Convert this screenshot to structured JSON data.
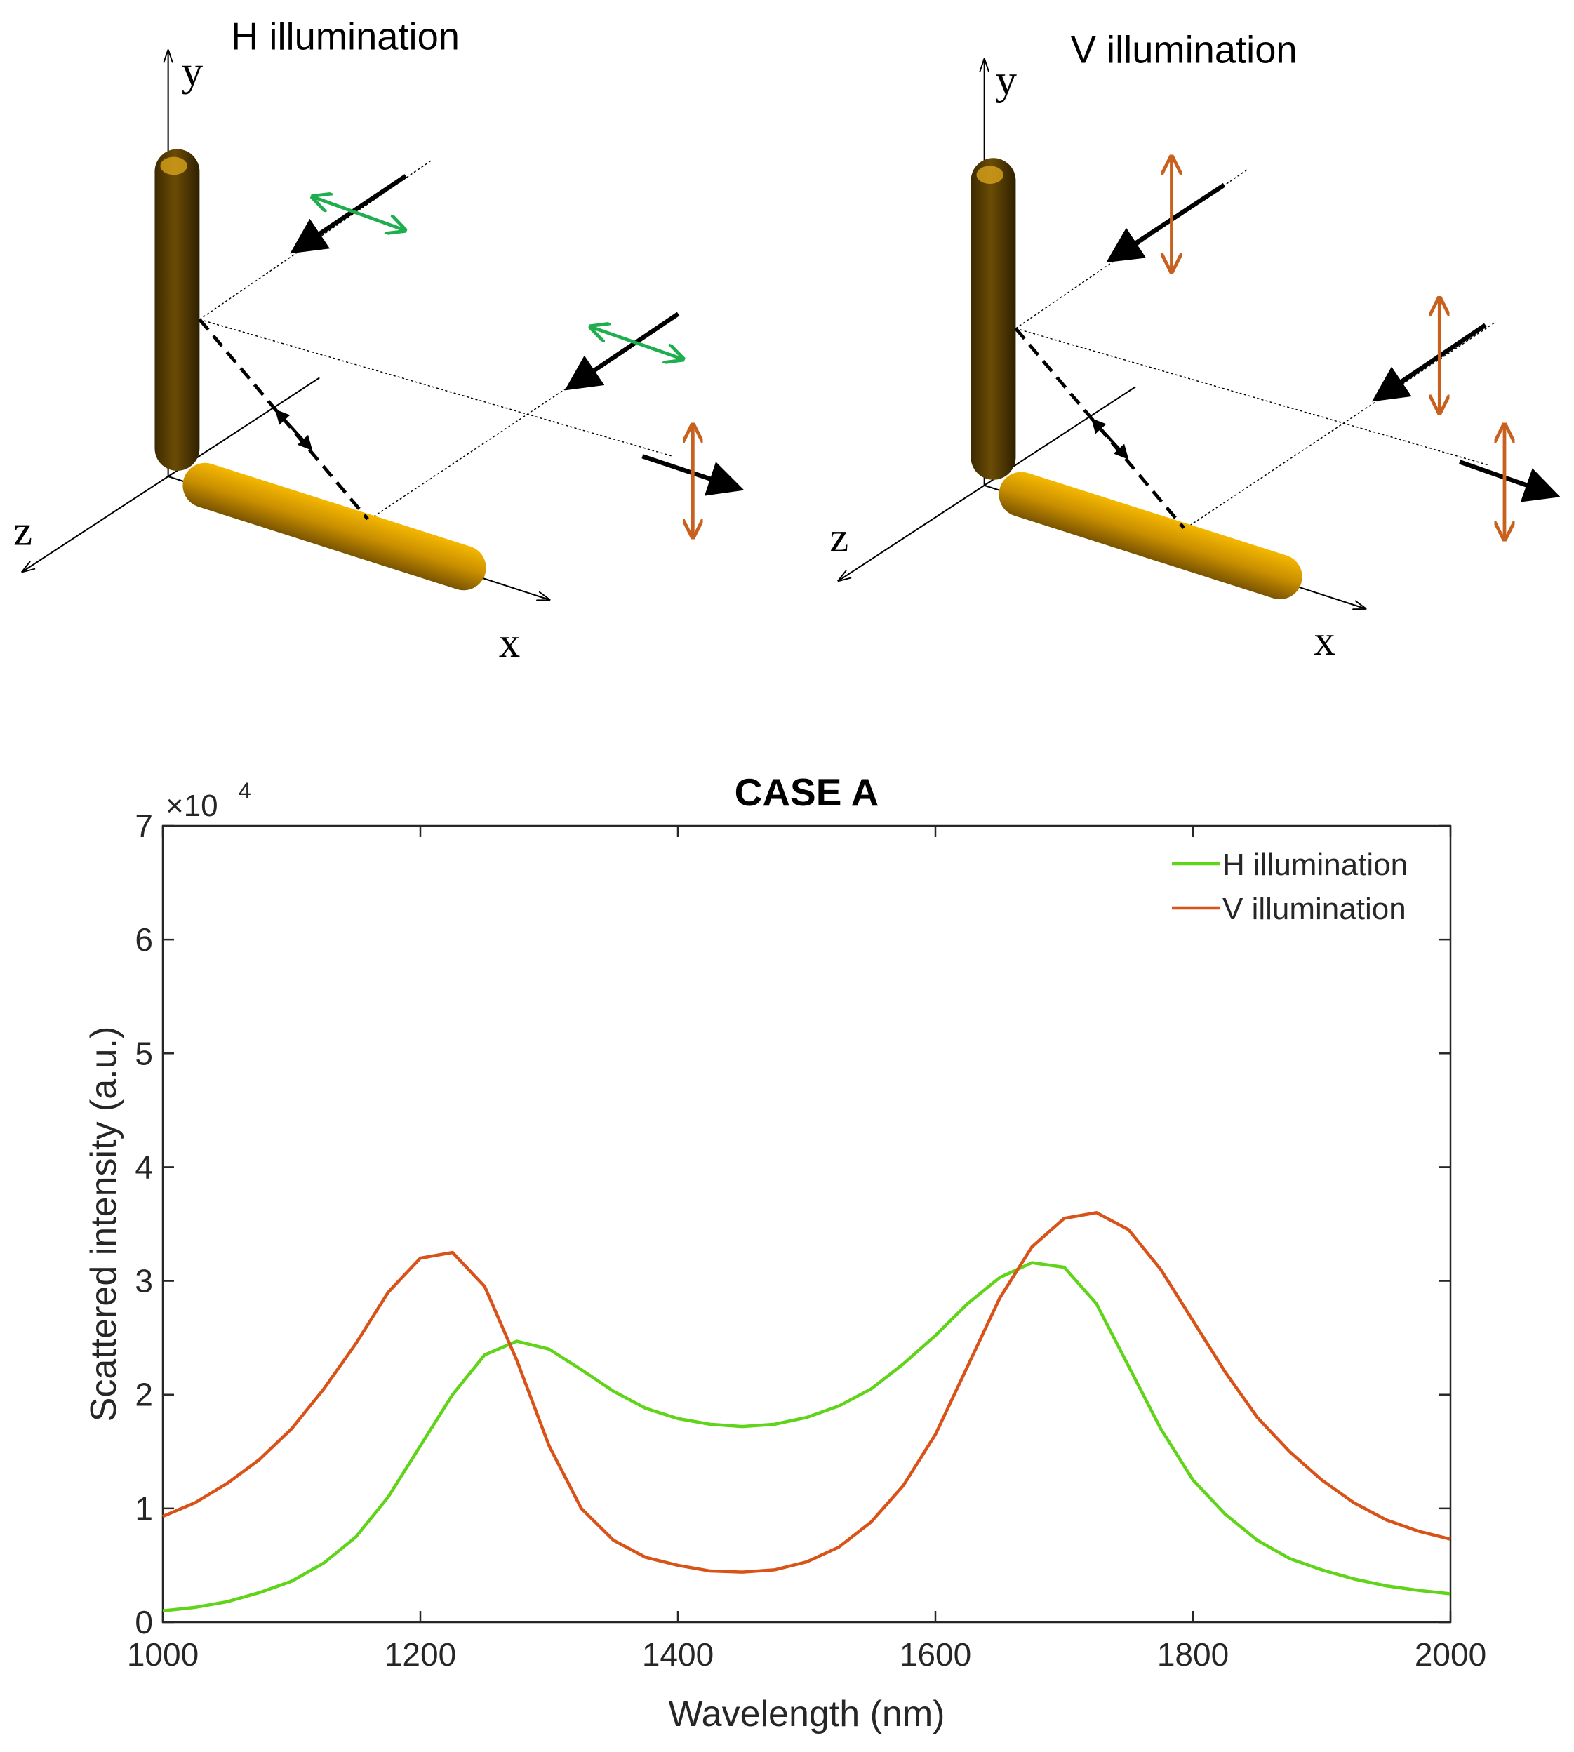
{
  "diagrams": [
    {
      "title": "H illumination",
      "axis_labels": {
        "x": "x",
        "y": "y",
        "z": "z"
      }
    },
    {
      "title": "V illumination",
      "axis_labels": {
        "x": "x",
        "y": "y",
        "z": "z"
      }
    }
  ],
  "chart_data": {
    "type": "line",
    "title": "CASE A",
    "xlabel": "Wavelength (nm)",
    "ylabel": "Scattered intensity (a.u.)",
    "y_multiplier": {
      "base": "×10",
      "exponent": "4"
    },
    "x": [
      1000,
      1025,
      1050,
      1075,
      1100,
      1125,
      1150,
      1175,
      1200,
      1225,
      1250,
      1275,
      1300,
      1325,
      1350,
      1375,
      1400,
      1425,
      1450,
      1475,
      1500,
      1525,
      1550,
      1575,
      1600,
      1625,
      1650,
      1675,
      1700,
      1725,
      1750,
      1775,
      1800,
      1825,
      1850,
      1875,
      1900,
      1925,
      1950,
      1975,
      2000
    ],
    "series": [
      {
        "name": "H illumination",
        "color": "#5fd419",
        "values": [
          0.1,
          0.13,
          0.18,
          0.26,
          0.36,
          0.52,
          0.75,
          1.1,
          1.55,
          2.0,
          2.35,
          2.47,
          2.4,
          2.22,
          2.03,
          1.88,
          1.79,
          1.74,
          1.72,
          1.74,
          1.8,
          1.9,
          2.05,
          2.27,
          2.52,
          2.8,
          3.03,
          3.16,
          3.12,
          2.8,
          2.25,
          1.7,
          1.25,
          0.95,
          0.72,
          0.56,
          0.46,
          0.38,
          0.32,
          0.28,
          0.25
        ]
      },
      {
        "name": "V illumination",
        "color": "#d95319",
        "values": [
          0.93,
          1.05,
          1.22,
          1.43,
          1.7,
          2.05,
          2.45,
          2.9,
          3.2,
          3.25,
          2.95,
          2.3,
          1.55,
          1.0,
          0.72,
          0.57,
          0.5,
          0.45,
          0.44,
          0.46,
          0.53,
          0.66,
          0.88,
          1.2,
          1.65,
          2.25,
          2.85,
          3.3,
          3.55,
          3.6,
          3.45,
          3.1,
          2.65,
          2.2,
          1.8,
          1.5,
          1.25,
          1.05,
          0.9,
          0.8,
          0.73
        ]
      }
    ],
    "xlim": [
      1000,
      2000
    ],
    "xticks": [
      1000,
      1200,
      1400,
      1600,
      1800,
      2000
    ],
    "ylim": [
      0,
      7
    ],
    "yticks": [
      0,
      1,
      2,
      3,
      4,
      5,
      6,
      7
    ],
    "legend": "upper right"
  }
}
